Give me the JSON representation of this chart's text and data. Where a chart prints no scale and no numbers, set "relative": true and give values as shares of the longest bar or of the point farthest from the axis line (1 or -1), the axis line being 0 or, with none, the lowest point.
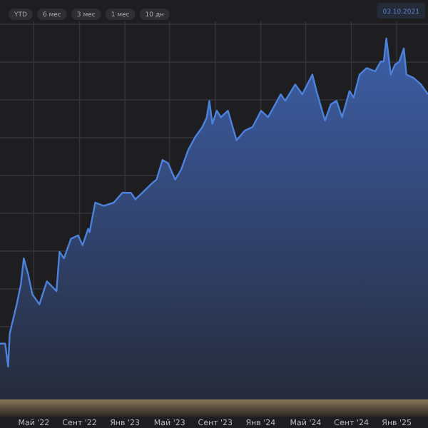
{
  "chart_data": {
    "type": "area",
    "relative": true,
    "grid": true,
    "color": "#4d82dc",
    "annotations": [
      "YTD",
      "6 мес",
      "3 мес",
      "1 мес",
      "10 дн",
      "03.10.2021"
    ],
    "x": [
      "2022-01-30",
      "2022-02-13",
      "2022-02-21",
      "2022-02-25",
      "2022-03-16",
      "2022-03-27",
      "2022-04-04",
      "2022-04-16",
      "2022-04-27",
      "2022-05-16",
      "2022-06-05",
      "2022-07-01",
      "2022-07-09",
      "2022-07-21",
      "2022-08-09",
      "2022-08-28",
      "2022-09-09",
      "2022-09-24",
      "2022-09-28",
      "2022-10-13",
      "2022-11-05",
      "2022-12-02",
      "2022-12-25",
      "2023-01-17",
      "2023-01-29",
      "2023-02-17",
      "2023-03-16",
      "2023-03-27",
      "2023-04-12",
      "2023-04-27",
      "2023-05-16",
      "2023-06-01",
      "2023-06-20",
      "2023-07-09",
      "2023-07-28",
      "2023-08-09",
      "2023-08-16",
      "2023-08-24",
      "2023-09-05",
      "2023-09-16",
      "2023-10-05",
      "2023-10-28",
      "2023-11-20",
      "2023-12-10",
      "2024-01-02",
      "2024-01-21",
      "2024-02-24",
      "2024-03-07",
      "2024-04-03",
      "2024-04-22",
      "2024-05-19",
      "2024-05-30",
      "2024-06-22",
      "2024-07-08",
      "2024-07-23",
      "2024-08-07",
      "2024-08-27",
      "2024-09-07",
      "2024-09-23",
      "2024-10-12",
      "2024-11-04",
      "2024-11-19",
      "2024-11-27",
      "2024-12-04",
      "2024-12-16",
      "2024-12-27",
      "2025-01-08",
      "2025-01-20",
      "2025-01-27",
      "2025-02-15",
      "2025-03-07",
      "2025-03-26"
    ],
    "values": [
      0.07,
      0.07,
      0,
      0.1,
      0.19,
      0.25,
      0.33,
      0.28,
      0.22,
      0.19,
      0.26,
      0.23,
      0.35,
      0.33,
      0.39,
      0.4,
      0.37,
      0.42,
      0.41,
      0.5,
      0.49,
      0.5,
      0.53,
      0.53,
      0.51,
      0.53,
      0.56,
      0.57,
      0.63,
      0.62,
      0.57,
      0.6,
      0.66,
      0.7,
      0.73,
      0.76,
      0.81,
      0.74,
      0.78,
      0.76,
      0.78,
      0.69,
      0.72,
      0.73,
      0.78,
      0.76,
      0.83,
      0.81,
      0.86,
      0.83,
      0.89,
      0.84,
      0.75,
      0.8,
      0.81,
      0.76,
      0.84,
      0.82,
      0.89,
      0.91,
      0.9,
      0.93,
      0.93,
      1,
      0.89,
      0.92,
      0.93,
      0.97,
      0.89,
      0.88,
      0.86,
      0.83
    ],
    "xlim": [
      "2022-01-30",
      "2025-03-26"
    ],
    "xticks": [
      {
        "value": "2022-05-01",
        "label": "Май '22"
      },
      {
        "value": "2022-09-01",
        "label": "Сент '22"
      },
      {
        "value": "2023-01-01",
        "label": "Янв '23"
      },
      {
        "value": "2023-05-01",
        "label": "Май '23"
      },
      {
        "value": "2023-09-01",
        "label": "Сент '23"
      },
      {
        "value": "2024-01-01",
        "label": "Янв '24"
      },
      {
        "value": "2024-05-01",
        "label": "Май '24"
      },
      {
        "value": "2024-09-01",
        "label": "Сент '24"
      },
      {
        "value": "2025-01-01",
        "label": "Янв '25"
      }
    ]
  }
}
